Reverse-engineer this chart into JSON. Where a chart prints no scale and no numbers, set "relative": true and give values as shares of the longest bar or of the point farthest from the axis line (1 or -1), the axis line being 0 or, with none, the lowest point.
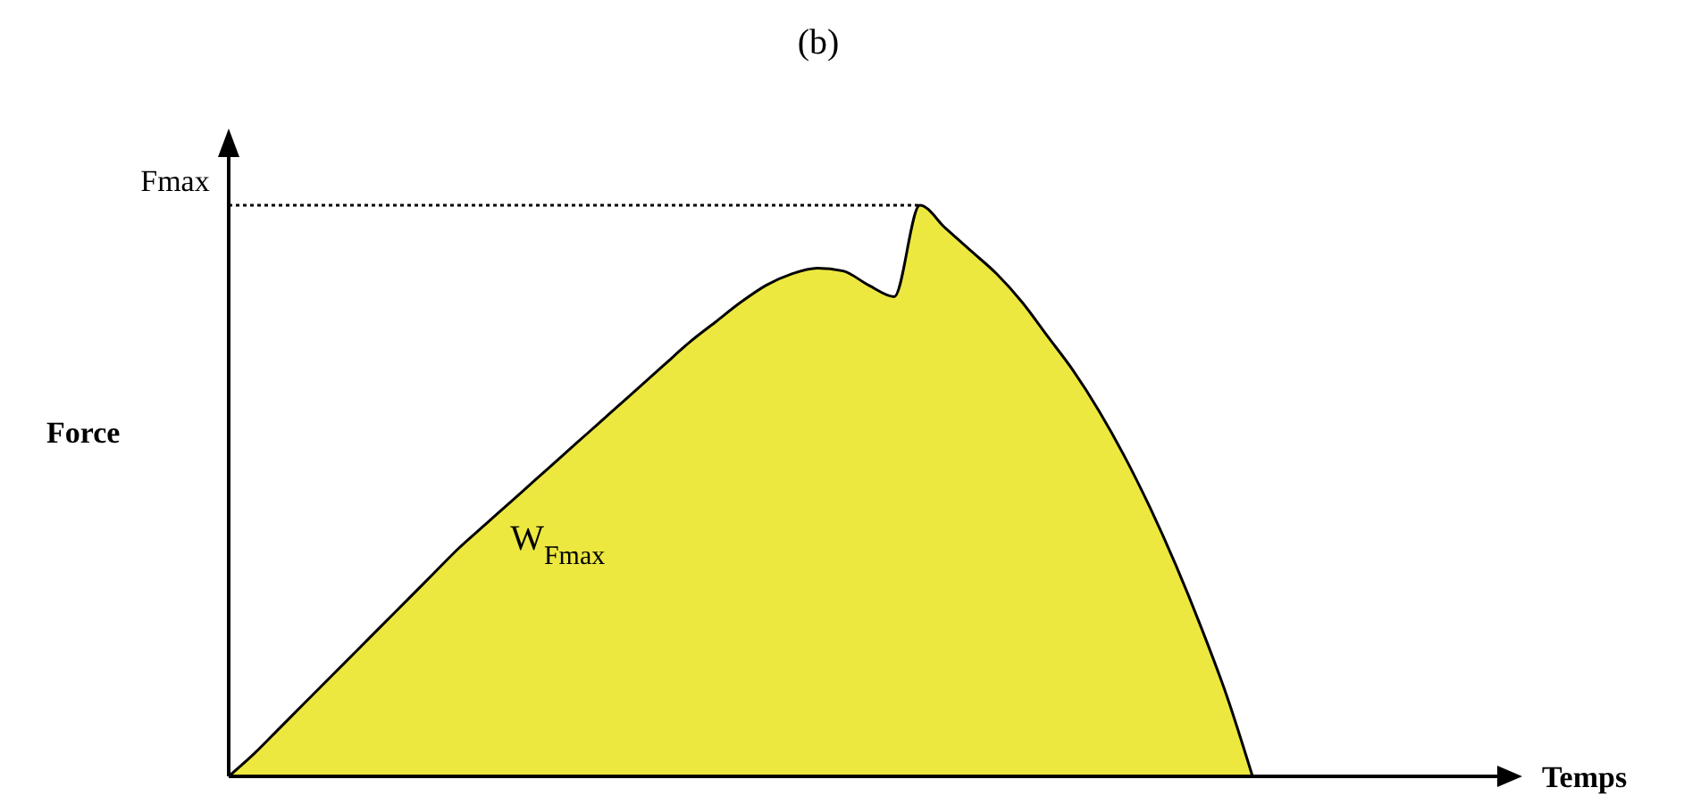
{
  "chart_data": {
    "type": "area",
    "title": "(b)",
    "xlabel": "Temps",
    "ylabel": "Force",
    "relative": true,
    "categories": [
      null,
      null,
      null,
      null,
      null,
      null,
      null,
      null,
      null,
      null,
      null,
      null,
      null,
      null,
      null,
      null,
      null,
      null,
      null,
      null,
      null,
      null,
      null,
      null,
      null,
      null,
      null,
      null,
      null,
      null,
      null,
      null,
      null,
      null,
      null,
      null,
      null,
      null,
      null,
      null,
      null,
      null,
      null,
      null,
      null,
      null,
      null,
      null,
      null,
      null
    ],
    "series": [
      {
        "color": "#ede840",
        "values": [
          0,
          0.04,
          0.085,
          0.13,
          0.175,
          0.22,
          0.265,
          0.31,
          0.355,
          0.4,
          0.44,
          0.48,
          0.52,
          0.56,
          0.6,
          0.64,
          0.68,
          0.72,
          0.76,
          0.795,
          0.83,
          0.86,
          0.88,
          0.89,
          0.885,
          0.86,
          0.84,
          1,
          0.96,
          0.92,
          0.88,
          0.83,
          0.77,
          0.71,
          0.64,
          0.56,
          0.47,
          0.37,
          0.26,
          0.14,
          0,
          null,
          null,
          null,
          null,
          null,
          null,
          null,
          null,
          null
        ]
      }
    ],
    "ref_lines": [
      {
        "axis": "y",
        "value": 1,
        "label": "Fmax",
        "line_style": "dotted",
        "color": "#000000"
      }
    ],
    "annotations": [
      "W$_{Fmax}$"
    ]
  }
}
